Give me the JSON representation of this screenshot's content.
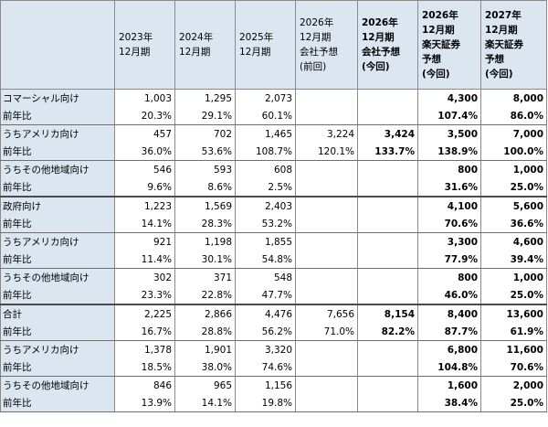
{
  "columns": [
    "",
    "2023年\n12月期",
    "2024年\n12月期",
    "2025年\n12月期",
    "2026年\n12月期\n会社予想\n(前回)",
    "2026年\n12月期\n会社予想\n(今回)",
    "2026年\n12月期\n楽天証券\n予想\n(今回)",
    "2027年\n12月期\n楽天証券\n予想\n(今回)"
  ],
  "rows": [
    {
      "label": "コマーシャル向け",
      "values": [
        "1,003",
        "1,295",
        "2,073",
        "",
        "",
        "4,300",
        "8,000"
      ]
    },
    {
      "label": "前年比",
      "values": [
        "20.3%",
        "29.1%",
        "60.1%",
        "",
        "",
        "107.4%",
        "86.0%"
      ]
    },
    {
      "label": "うちアメリカ向け",
      "values": [
        "457",
        "702",
        "1,465",
        "3,224",
        "3,424",
        "3,500",
        "7,000"
      ]
    },
    {
      "label": "前年比",
      "values": [
        "36.0%",
        "53.6%",
        "108.7%",
        "120.1%",
        "133.7%",
        "138.9%",
        "100.0%"
      ]
    },
    {
      "label": "うちその他地域向け",
      "values": [
        "546",
        "593",
        "608",
        "",
        "",
        "800",
        "1,000"
      ]
    },
    {
      "label": "前年比",
      "values": [
        "9.6%",
        "8.6%",
        "2.5%",
        "",
        "",
        "31.6%",
        "25.0%"
      ]
    },
    {
      "label": "政府向け",
      "values": [
        "1,223",
        "1,569",
        "2,403",
        "",
        "",
        "4,100",
        "5,600"
      ]
    },
    {
      "label": "前年比",
      "values": [
        "14.1%",
        "28.3%",
        "53.2%",
        "",
        "",
        "70.6%",
        "36.6%"
      ]
    },
    {
      "label": "うちアメリカ向け",
      "values": [
        "921",
        "1,198",
        "1,855",
        "",
        "",
        "3,300",
        "4,600"
      ]
    },
    {
      "label": "前年比",
      "values": [
        "11.4%",
        "30.1%",
        "54.8%",
        "",
        "",
        "77.9%",
        "39.4%"
      ]
    },
    {
      "label": "うちその他地域向け",
      "values": [
        "302",
        "371",
        "548",
        "",
        "",
        "800",
        "1,000"
      ]
    },
    {
      "label": "前年比",
      "values": [
        "23.3%",
        "22.8%",
        "47.7%",
        "",
        "",
        "46.0%",
        "25.0%"
      ]
    },
    {
      "label": "合計",
      "values": [
        "2,225",
        "2,866",
        "4,476",
        "7,656",
        "8,154",
        "8,400",
        "13,600"
      ]
    },
    {
      "label": "前年比",
      "values": [
        "16.7%",
        "28.8%",
        "56.2%",
        "71.0%",
        "82.2%",
        "87.7%",
        "61.9%"
      ]
    },
    {
      "label": "うちアメリカ向け",
      "values": [
        "1,378",
        "1,901",
        "3,320",
        "",
        "",
        "6,800",
        "11,600"
      ]
    },
    {
      "label": "前年比",
      "values": [
        "18.5%",
        "38.0%",
        "74.6%",
        "",
        "",
        "104.8%",
        "70.6%"
      ]
    },
    {
      "label": "うちその他地域向け",
      "values": [
        "846",
        "965",
        "1,156",
        "",
        "",
        "1,600",
        "2,000"
      ]
    },
    {
      "label": "前年比",
      "values": [
        "13.9%",
        "14.1%",
        "19.8%",
        "",
        "",
        "38.4%",
        "25.0%"
      ]
    }
  ]
}
